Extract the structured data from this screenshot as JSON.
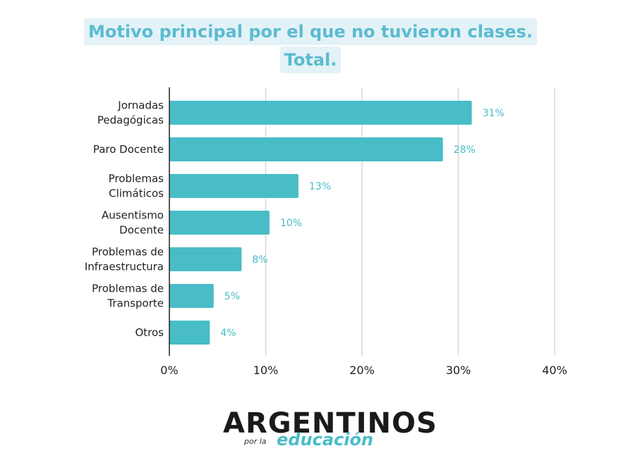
{
  "title": {
    "line1": "Motivo principal por el que no tuvieron clases.",
    "line2": "Total."
  },
  "chart_data": {
    "type": "bar",
    "orientation": "horizontal",
    "categories": [
      [
        "Jornadas",
        "Pedagógicas"
      ],
      [
        "Paro Docente"
      ],
      [
        "Problemas",
        "Climáticos"
      ],
      [
        "Ausentismo",
        "Docente"
      ],
      [
        "Problemas de",
        "Infraestructura"
      ],
      [
        "Problemas de",
        "Transporte"
      ],
      [
        "Otros"
      ]
    ],
    "values": [
      31.4,
      28.4,
      13.4,
      10.4,
      7.5,
      4.6,
      4.2
    ],
    "value_labels": [
      "31%",
      "28%",
      "13%",
      "10%",
      "8%",
      "5%",
      "4%"
    ],
    "xlim": [
      0,
      40
    ],
    "xticks": [
      "0%",
      "10%",
      "20%",
      "30%",
      "40%"
    ],
    "grid": true,
    "bar_color": "#48bdc7",
    "label_color": "#48bdc7"
  },
  "logo": {
    "main": "ARGENTINOS",
    "sub": "por la",
    "edu": "educación"
  }
}
